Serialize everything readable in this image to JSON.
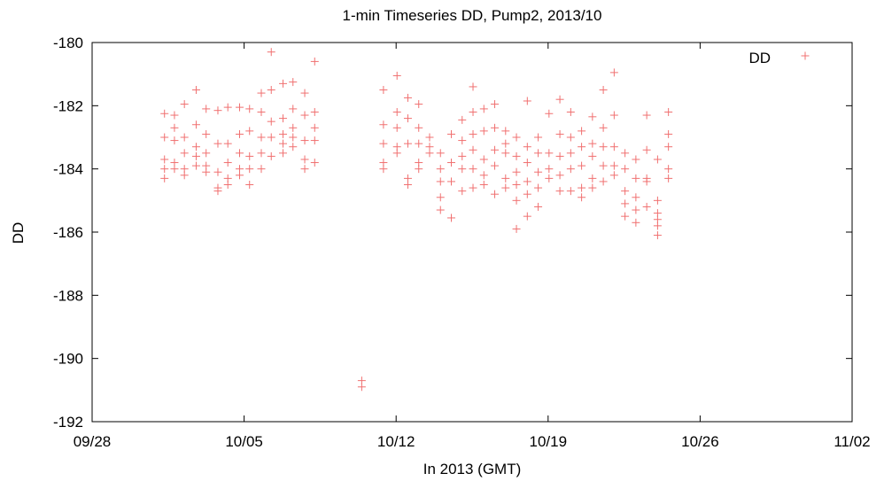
{
  "chart_data": {
    "type": "scatter",
    "title": "1-min Timeseries DD, Pump2, 2013/10",
    "xlabel": "In 2013 (GMT)",
    "ylabel": "DD",
    "xlim": [
      "2013-09-28",
      "2013-11-02"
    ],
    "ylim": [
      -192,
      -180
    ],
    "x_ticks": [
      "09/28",
      "10/05",
      "10/12",
      "10/19",
      "10/26",
      "11/02"
    ],
    "y_ticks": [
      "-180",
      "-182",
      "-184",
      "-186",
      "-188",
      "-190",
      "-192"
    ],
    "grid": false,
    "legend_position": "top-right",
    "marker": "plus",
    "series": [
      {
        "name": "DD",
        "color": "#f07070",
        "points": [
          [
            "2013-10-01 08:00",
            -182.25
          ],
          [
            "2013-10-01 08:00",
            -183.0
          ],
          [
            "2013-10-01 08:00",
            -183.7
          ],
          [
            "2013-10-01 08:00",
            -184.0
          ],
          [
            "2013-10-01 08:00",
            -184.3
          ],
          [
            "2013-10-01 19:00",
            -182.3
          ],
          [
            "2013-10-01 19:00",
            -182.7
          ],
          [
            "2013-10-01 19:00",
            -183.1
          ],
          [
            "2013-10-01 19:00",
            -183.8
          ],
          [
            "2013-10-01 19:00",
            -184.0
          ],
          [
            "2013-10-02 06:00",
            -181.95
          ],
          [
            "2013-10-02 06:00",
            -183.0
          ],
          [
            "2013-10-02 06:00",
            -183.5
          ],
          [
            "2013-10-02 06:00",
            -184.0
          ],
          [
            "2013-10-02 06:00",
            -184.2
          ],
          [
            "2013-10-02 19:00",
            -181.5
          ],
          [
            "2013-10-02 19:00",
            -182.6
          ],
          [
            "2013-10-02 19:00",
            -183.3
          ],
          [
            "2013-10-02 19:00",
            -183.6
          ],
          [
            "2013-10-02 19:00",
            -183.9
          ],
          [
            "2013-10-03 06:00",
            -182.1
          ],
          [
            "2013-10-03 06:00",
            -182.9
          ],
          [
            "2013-10-03 06:00",
            -183.5
          ],
          [
            "2013-10-03 06:00",
            -183.9
          ],
          [
            "2013-10-03 06:00",
            -184.1
          ],
          [
            "2013-10-03 19:00",
            -182.15
          ],
          [
            "2013-10-03 19:00",
            -183.2
          ],
          [
            "2013-10-03 19:00",
            -184.1
          ],
          [
            "2013-10-03 19:00",
            -184.6
          ],
          [
            "2013-10-03 19:00",
            -184.7
          ],
          [
            "2013-10-04 06:00",
            -182.05
          ],
          [
            "2013-10-04 06:00",
            -183.2
          ],
          [
            "2013-10-04 06:00",
            -183.8
          ],
          [
            "2013-10-04 06:00",
            -184.3
          ],
          [
            "2013-10-04 06:00",
            -184.5
          ],
          [
            "2013-10-04 19:00",
            -182.05
          ],
          [
            "2013-10-04 19:00",
            -182.9
          ],
          [
            "2013-10-04 19:00",
            -183.5
          ],
          [
            "2013-10-04 19:00",
            -184.0
          ],
          [
            "2013-10-04 19:00",
            -184.2
          ],
          [
            "2013-10-05 06:00",
            -182.1
          ],
          [
            "2013-10-05 06:00",
            -182.8
          ],
          [
            "2013-10-05 06:00",
            -183.6
          ],
          [
            "2013-10-05 06:00",
            -184.0
          ],
          [
            "2013-10-05 06:00",
            -184.5
          ],
          [
            "2013-10-05 19:00",
            -181.6
          ],
          [
            "2013-10-05 19:00",
            -182.2
          ],
          [
            "2013-10-05 19:00",
            -183.0
          ],
          [
            "2013-10-05 19:00",
            -183.5
          ],
          [
            "2013-10-05 19:00",
            -184.0
          ],
          [
            "2013-10-06 06:00",
            -180.3
          ],
          [
            "2013-10-06 06:00",
            -181.5
          ],
          [
            "2013-10-06 06:00",
            -182.5
          ],
          [
            "2013-10-06 06:00",
            -183.0
          ],
          [
            "2013-10-06 06:00",
            -183.6
          ],
          [
            "2013-10-06 19:00",
            -181.3
          ],
          [
            "2013-10-06 19:00",
            -182.4
          ],
          [
            "2013-10-06 19:00",
            -182.9
          ],
          [
            "2013-10-06 19:00",
            -183.2
          ],
          [
            "2013-10-06 19:00",
            -183.5
          ],
          [
            "2013-10-07 06:00",
            -181.25
          ],
          [
            "2013-10-07 06:00",
            -182.1
          ],
          [
            "2013-10-07 06:00",
            -182.7
          ],
          [
            "2013-10-07 06:00",
            -183.0
          ],
          [
            "2013-10-07 06:00",
            -183.3
          ],
          [
            "2013-10-07 19:00",
            -181.6
          ],
          [
            "2013-10-07 19:00",
            -182.3
          ],
          [
            "2013-10-07 19:00",
            -183.1
          ],
          [
            "2013-10-07 19:00",
            -183.7
          ],
          [
            "2013-10-07 19:00",
            -184.0
          ],
          [
            "2013-10-08 06:00",
            -180.6
          ],
          [
            "2013-10-08 06:00",
            -182.2
          ],
          [
            "2013-10-08 06:00",
            -182.7
          ],
          [
            "2013-10-08 06:00",
            -183.1
          ],
          [
            "2013-10-08 06:00",
            -183.8
          ],
          [
            "2013-10-10 10:00",
            -190.7
          ],
          [
            "2013-10-10 10:00",
            -190.9
          ],
          [
            "2013-10-11 10:00",
            -181.5
          ],
          [
            "2013-10-11 10:00",
            -182.6
          ],
          [
            "2013-10-11 10:00",
            -183.2
          ],
          [
            "2013-10-11 10:00",
            -183.8
          ],
          [
            "2013-10-11 10:00",
            -184.0
          ],
          [
            "2013-10-12 01:00",
            -181.05
          ],
          [
            "2013-10-12 01:00",
            -182.2
          ],
          [
            "2013-10-12 01:00",
            -182.7
          ],
          [
            "2013-10-12 01:00",
            -183.3
          ],
          [
            "2013-10-12 01:00",
            -183.5
          ],
          [
            "2013-10-12 13:00",
            -181.75
          ],
          [
            "2013-10-12 13:00",
            -182.4
          ],
          [
            "2013-10-12 13:00",
            -183.2
          ],
          [
            "2013-10-12 13:00",
            -184.3
          ],
          [
            "2013-10-12 13:00",
            -184.5
          ],
          [
            "2013-10-13 01:00",
            -181.95
          ],
          [
            "2013-10-13 01:00",
            -182.7
          ],
          [
            "2013-10-13 01:00",
            -183.2
          ],
          [
            "2013-10-13 01:00",
            -183.8
          ],
          [
            "2013-10-13 01:00",
            -184.0
          ],
          [
            "2013-10-13 13:00",
            -183.0
          ],
          [
            "2013-10-13 13:00",
            -183.3
          ],
          [
            "2013-10-13 13:00",
            -183.5
          ],
          [
            "2013-10-14 01:00",
            -183.5
          ],
          [
            "2013-10-14 01:00",
            -184.0
          ],
          [
            "2013-10-14 01:00",
            -184.4
          ],
          [
            "2013-10-14 01:00",
            -184.9
          ],
          [
            "2013-10-14 01:00",
            -185.3
          ],
          [
            "2013-10-14 13:00",
            -182.9
          ],
          [
            "2013-10-14 13:00",
            -183.8
          ],
          [
            "2013-10-14 13:00",
            -184.4
          ],
          [
            "2013-10-14 13:00",
            -185.55
          ],
          [
            "2013-10-15 01:00",
            -182.45
          ],
          [
            "2013-10-15 01:00",
            -183.1
          ],
          [
            "2013-10-15 01:00",
            -183.6
          ],
          [
            "2013-10-15 01:00",
            -184.0
          ],
          [
            "2013-10-15 01:00",
            -184.7
          ],
          [
            "2013-10-15 13:00",
            -181.4
          ],
          [
            "2013-10-15 13:00",
            -182.2
          ],
          [
            "2013-10-15 13:00",
            -182.9
          ],
          [
            "2013-10-15 13:00",
            -183.4
          ],
          [
            "2013-10-15 13:00",
            -184.0
          ],
          [
            "2013-10-15 13:00",
            -184.6
          ],
          [
            "2013-10-16 01:00",
            -182.1
          ],
          [
            "2013-10-16 01:00",
            -182.8
          ],
          [
            "2013-10-16 01:00",
            -183.7
          ],
          [
            "2013-10-16 01:00",
            -184.2
          ],
          [
            "2013-10-16 01:00",
            -184.5
          ],
          [
            "2013-10-16 13:00",
            -181.95
          ],
          [
            "2013-10-16 13:00",
            -182.7
          ],
          [
            "2013-10-16 13:00",
            -183.4
          ],
          [
            "2013-10-16 13:00",
            -183.9
          ],
          [
            "2013-10-16 13:00",
            -184.8
          ],
          [
            "2013-10-17 01:00",
            -182.8
          ],
          [
            "2013-10-17 01:00",
            -183.2
          ],
          [
            "2013-10-17 01:00",
            -183.5
          ],
          [
            "2013-10-17 01:00",
            -184.3
          ],
          [
            "2013-10-17 01:00",
            -184.6
          ],
          [
            "2013-10-17 13:00",
            -183.0
          ],
          [
            "2013-10-17 13:00",
            -183.6
          ],
          [
            "2013-10-17 13:00",
            -184.1
          ],
          [
            "2013-10-17 13:00",
            -184.5
          ],
          [
            "2013-10-17 13:00",
            -185.0
          ],
          [
            "2013-10-17 13:00",
            -185.9
          ],
          [
            "2013-10-18 01:00",
            -181.85
          ],
          [
            "2013-10-18 01:00",
            -183.3
          ],
          [
            "2013-10-18 01:00",
            -183.8
          ],
          [
            "2013-10-18 01:00",
            -184.4
          ],
          [
            "2013-10-18 01:00",
            -184.8
          ],
          [
            "2013-10-18 01:00",
            -185.5
          ],
          [
            "2013-10-18 13:00",
            -183.0
          ],
          [
            "2013-10-18 13:00",
            -183.5
          ],
          [
            "2013-10-18 13:00",
            -184.1
          ],
          [
            "2013-10-18 13:00",
            -184.6
          ],
          [
            "2013-10-18 13:00",
            -185.2
          ],
          [
            "2013-10-19 01:00",
            -182.25
          ],
          [
            "2013-10-19 01:00",
            -183.5
          ],
          [
            "2013-10-19 01:00",
            -184.0
          ],
          [
            "2013-10-19 01:00",
            -184.3
          ],
          [
            "2013-10-19 13:00",
            -181.8
          ],
          [
            "2013-10-19 13:00",
            -182.9
          ],
          [
            "2013-10-19 13:00",
            -183.6
          ],
          [
            "2013-10-19 13:00",
            -184.2
          ],
          [
            "2013-10-19 13:00",
            -184.7
          ],
          [
            "2013-10-20 01:00",
            -182.2
          ],
          [
            "2013-10-20 01:00",
            -183.0
          ],
          [
            "2013-10-20 01:00",
            -183.5
          ],
          [
            "2013-10-20 01:00",
            -184.0
          ],
          [
            "2013-10-20 01:00",
            -184.7
          ],
          [
            "2013-10-20 13:00",
            -182.8
          ],
          [
            "2013-10-20 13:00",
            -183.3
          ],
          [
            "2013-10-20 13:00",
            -183.9
          ],
          [
            "2013-10-20 13:00",
            -184.6
          ],
          [
            "2013-10-20 13:00",
            -184.9
          ],
          [
            "2013-10-21 01:00",
            -182.35
          ],
          [
            "2013-10-21 01:00",
            -183.2
          ],
          [
            "2013-10-21 01:00",
            -183.6
          ],
          [
            "2013-10-21 01:00",
            -184.3
          ],
          [
            "2013-10-21 01:00",
            -184.6
          ],
          [
            "2013-10-21 13:00",
            -181.5
          ],
          [
            "2013-10-21 13:00",
            -182.7
          ],
          [
            "2013-10-21 13:00",
            -183.3
          ],
          [
            "2013-10-21 13:00",
            -183.9
          ],
          [
            "2013-10-21 13:00",
            -184.4
          ],
          [
            "2013-10-22 01:00",
            -180.95
          ],
          [
            "2013-10-22 01:00",
            -182.3
          ],
          [
            "2013-10-22 01:00",
            -183.3
          ],
          [
            "2013-10-22 01:00",
            -183.9
          ],
          [
            "2013-10-22 01:00",
            -184.2
          ],
          [
            "2013-10-22 13:00",
            -183.5
          ],
          [
            "2013-10-22 13:00",
            -184.0
          ],
          [
            "2013-10-22 13:00",
            -184.7
          ],
          [
            "2013-10-22 13:00",
            -185.1
          ],
          [
            "2013-10-22 13:00",
            -185.5
          ],
          [
            "2013-10-23 01:00",
            -183.7
          ],
          [
            "2013-10-23 01:00",
            -184.3
          ],
          [
            "2013-10-23 01:00",
            -184.9
          ],
          [
            "2013-10-23 01:00",
            -185.3
          ],
          [
            "2013-10-23 01:00",
            -185.7
          ],
          [
            "2013-10-23 13:00",
            -182.3
          ],
          [
            "2013-10-23 13:00",
            -183.4
          ],
          [
            "2013-10-23 13:00",
            -184.3
          ],
          [
            "2013-10-23 13:00",
            -184.4
          ],
          [
            "2013-10-23 13:00",
            -185.2
          ],
          [
            "2013-10-24 01:00",
            -183.7
          ],
          [
            "2013-10-24 01:00",
            -185.0
          ],
          [
            "2013-10-24 01:00",
            -185.4
          ],
          [
            "2013-10-24 01:00",
            -185.6
          ],
          [
            "2013-10-24 01:00",
            -185.8
          ],
          [
            "2013-10-24 01:00",
            -186.1
          ],
          [
            "2013-10-24 13:00",
            -182.2
          ],
          [
            "2013-10-24 13:00",
            -182.9
          ],
          [
            "2013-10-24 13:00",
            -183.3
          ],
          [
            "2013-10-24 13:00",
            -184.0
          ],
          [
            "2013-10-24 13:00",
            -184.3
          ]
        ]
      }
    ]
  }
}
